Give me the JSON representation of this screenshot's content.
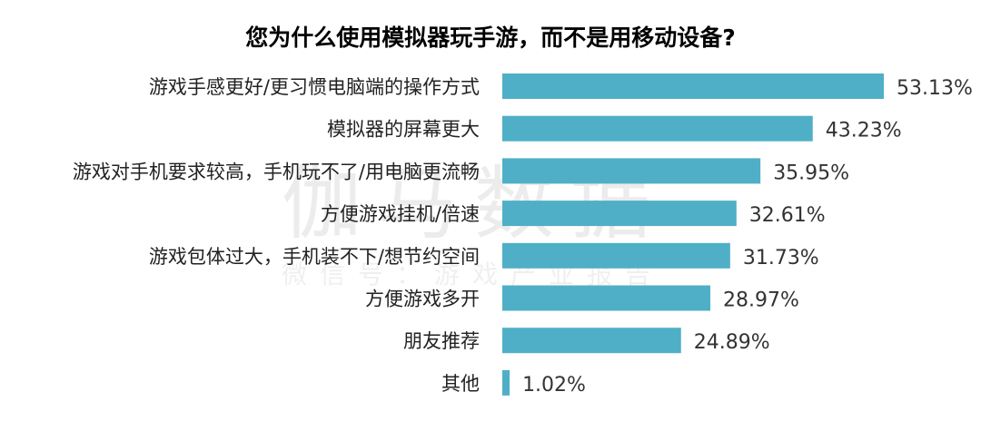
{
  "watermark": {
    "main": "伽马数据",
    "sub": "微信号：游戏产业报告"
  },
  "colors": {
    "bar": "#4fafc7",
    "text": "#222222"
  },
  "chart_data": {
    "type": "bar",
    "orientation": "horizontal",
    "title": "您为什么使用模拟器玩手游，而不是用移动设备?",
    "categories": [
      "游戏手感更好/更习惯电脑端的操作方式",
      "模拟器的屏幕更大",
      "游戏对手机要求较高，手机玩不了/用电脑更流畅",
      "方便游戏挂机/倍速",
      "游戏包体过大，手机装不下/想节约空间",
      "方便游戏多开",
      "朋友推荐",
      "其他"
    ],
    "values": [
      53.13,
      43.23,
      35.95,
      32.61,
      31.73,
      28.97,
      24.89,
      1.02
    ],
    "value_labels": [
      "53.13%",
      "43.23%",
      "35.95%",
      "32.61%",
      "31.73%",
      "28.97%",
      "24.89%",
      "1.02%"
    ],
    "xlim": [
      0,
      53.13
    ],
    "grid": false,
    "legend": "none"
  }
}
